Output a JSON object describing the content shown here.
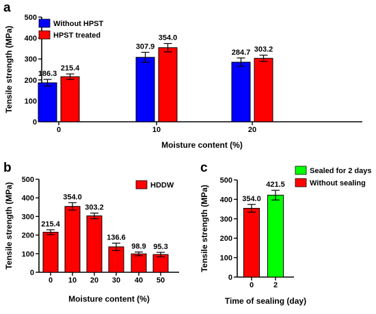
{
  "chart_data": [
    {
      "panel": "a",
      "type": "bar",
      "categories": [
        "0",
        "10",
        "20"
      ],
      "series": [
        {
          "name": "Without HPST",
          "color": "#0000ff",
          "values": [
            186.3,
            307.9,
            284.7
          ],
          "errors": [
            16,
            24,
            20
          ],
          "labels": [
            "186.3",
            "307.9",
            "284.7"
          ]
        },
        {
          "name": "HPST treated",
          "color": "#ff0000",
          "values": [
            215.4,
            354.0,
            303.2
          ],
          "errors": [
            13,
            20,
            15
          ],
          "labels": [
            "215.4",
            "354.0",
            "303.2"
          ]
        }
      ],
      "xlabel": "Moisture content (%)",
      "ylabel": "Tensile strength (MPa)",
      "ylim": [
        0,
        500
      ],
      "yticks": [
        "0",
        "100",
        "200",
        "300",
        "400",
        "500"
      ],
      "legend": "top-left"
    },
    {
      "panel": "b",
      "type": "bar",
      "categories": [
        "0",
        "10",
        "20",
        "30",
        "40",
        "50"
      ],
      "series": [
        {
          "name": "HDDW",
          "color": "#ff0000",
          "values": [
            215.4,
            354.0,
            303.2,
            136.6,
            98.9,
            95.3
          ],
          "errors": [
            13,
            20,
            15,
            20,
            10,
            12
          ],
          "labels": [
            "215.4",
            "354.0",
            "303.2",
            "136.6",
            "98.9",
            "95.3"
          ]
        }
      ],
      "xlabel": "Moisture content (%)",
      "ylabel": "Tensile strength (MPa)",
      "ylim": [
        0,
        500
      ],
      "yticks": [
        "0",
        "100",
        "200",
        "300",
        "400",
        "500"
      ],
      "legend": "top-right"
    },
    {
      "panel": "c",
      "type": "bar",
      "categories": [
        "0",
        "2"
      ],
      "bars": [
        {
          "category": "0",
          "value": 354.0,
          "error": 20,
          "label": "354.0",
          "color": "#ff0000"
        },
        {
          "category": "2",
          "value": 421.5,
          "error": 25,
          "label": "421.5",
          "color": "#00ff00"
        }
      ],
      "legend_entries": [
        {
          "name": "Sealed for 2 days",
          "color": "#00ff00"
        },
        {
          "name": "Without sealing",
          "color": "#ff0000"
        }
      ],
      "xlabel": "Time of sealing (day)",
      "ylabel": "Tensile strength (MPa)",
      "ylim": [
        0,
        500
      ],
      "yticks": [
        "0",
        "100",
        "200",
        "300",
        "400",
        "500"
      ],
      "legend": "right"
    }
  ]
}
